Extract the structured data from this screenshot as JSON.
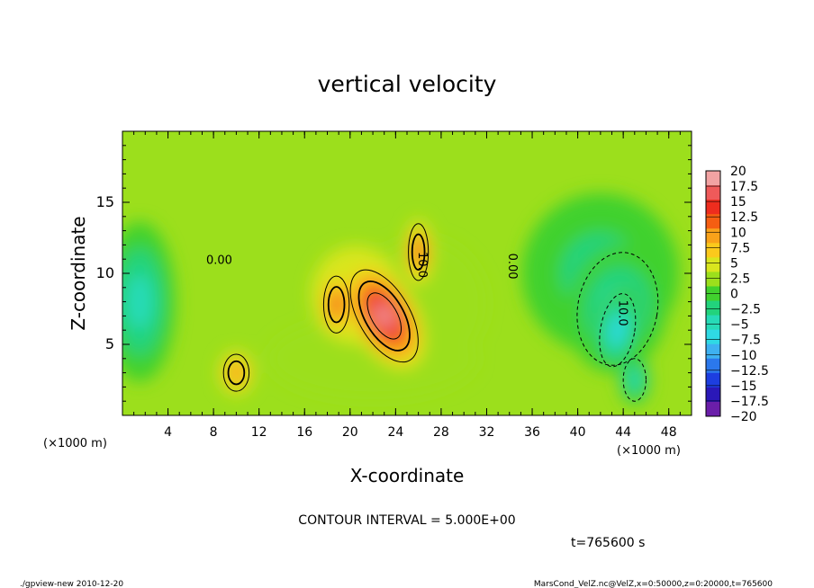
{
  "chart_data": {
    "type": "heatmap",
    "title": "vertical velocity",
    "xlabel": "X-coordinate",
    "ylabel": "Z-coordinate",
    "x_unit_left": "(×1000 m)",
    "x_unit_right": "(×1000 m)",
    "xlim": [
      0,
      50
    ],
    "ylim": [
      0,
      20
    ],
    "x_ticks": [
      4,
      8,
      12,
      16,
      20,
      24,
      28,
      32,
      36,
      40,
      44,
      48
    ],
    "y_ticks": [
      5,
      10,
      15
    ],
    "contour_interval_text": "CONTOUR INTERVAL = 5.000E+00",
    "time_text": "t=765600 s",
    "footer_left": "./gpview-new  2010-12-20",
    "footer_right": "MarsCond_VelZ.nc@VelZ,x=0:50000,z=0:20000,t=765600",
    "contour_labels": [
      {
        "text": "0.00",
        "x": 8.5,
        "z": 10.9,
        "rotate": 0
      },
      {
        "text": "0.00",
        "x": 34.2,
        "z": 10.5,
        "rotate": 90
      },
      {
        "text": "10.0",
        "x": 26.3,
        "z": 10.6,
        "rotate": 90
      },
      {
        "text": "10.0",
        "x": 43.9,
        "z": 7.2,
        "rotate": 90
      }
    ],
    "colorbar": {
      "levels": [
        "20",
        "17.5",
        "15",
        "12.5",
        "10",
        "7.5",
        "5",
        "2.5",
        "0",
        "−2.5",
        "−5",
        "−7.5",
        "−10",
        "−12.5",
        "−15",
        "−17.5",
        "−20"
      ],
      "colors": [
        "#f2a3a3",
        "#ef5a5a",
        "#ee2d1e",
        "#f55e12",
        "#f9a21a",
        "#fbc91c",
        "#d9e61e",
        "#9cdf1c",
        "#41d12e",
        "#22d37c",
        "#27dbb7",
        "#2fd9e4",
        "#3eb1f1",
        "#2b78ec",
        "#1d3ee0",
        "#2a18b8",
        "#6a1ea9"
      ]
    },
    "background_value": 2.5,
    "features": [
      {
        "x": 23.0,
        "z": 7.0,
        "sx": 1.8,
        "sz": 3.6,
        "rot": 30,
        "value": 19
      },
      {
        "x": 26.0,
        "z": 11.5,
        "sx": 0.7,
        "sz": 2.0,
        "rot": 0,
        "value": 12
      },
      {
        "x": 18.8,
        "z": 7.8,
        "sx": 0.9,
        "sz": 2.0,
        "rot": 0,
        "value": 12
      },
      {
        "x": 10.0,
        "z": 3.0,
        "sx": 0.9,
        "sz": 1.3,
        "rot": 0,
        "value": 10
      },
      {
        "x": 20.5,
        "z": 8.5,
        "sx": 2.5,
        "sz": 3.0,
        "rot": 0,
        "value": 4
      },
      {
        "x": 26.5,
        "z": 8.0,
        "sx": 3.5,
        "sz": 4.0,
        "rot": 20,
        "value": 3
      },
      {
        "x": 22.0,
        "z": 4.0,
        "sx": 6.0,
        "sz": 2.5,
        "rot": 0,
        "value": 3
      },
      {
        "x": 43.5,
        "z": 7.5,
        "sx": 2.8,
        "sz": 4.0,
        "rot": -10,
        "value": -6
      },
      {
        "x": 43.5,
        "z": 6.0,
        "sx": 1.2,
        "sz": 2.6,
        "rot": -10,
        "value": -7
      },
      {
        "x": 45.0,
        "z": 2.5,
        "sx": 0.8,
        "sz": 1.5,
        "rot": 0,
        "value": -5
      },
      {
        "x": 1.5,
        "z": 8.0,
        "sx": 2.0,
        "sz": 5.0,
        "rot": 0,
        "value": -4.5
      },
      {
        "x": 42.0,
        "z": 10.0,
        "sx": 4.5,
        "sz": 5.0,
        "rot": 0,
        "value": -2
      }
    ]
  }
}
